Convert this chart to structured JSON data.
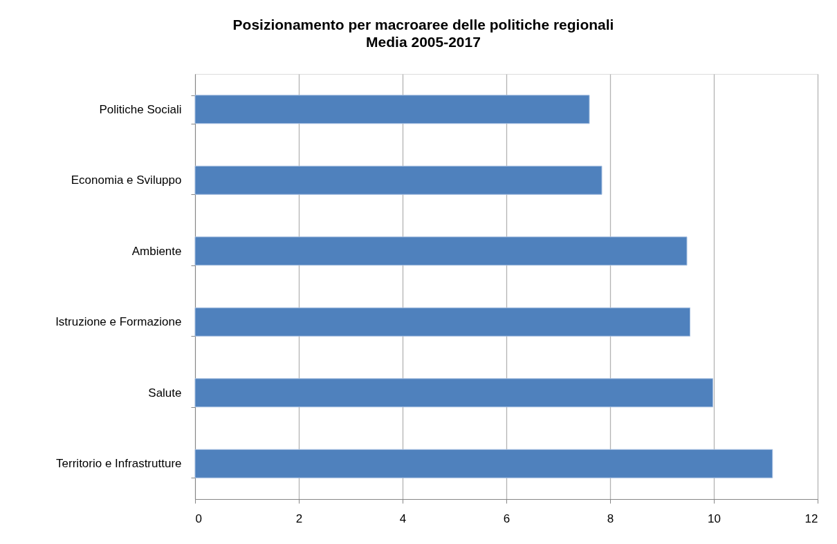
{
  "chart_data": {
    "type": "bar",
    "orientation": "horizontal",
    "title": "Posizionamento per macroaree delle politiche regionali",
    "subtitle": "Media 2005-2017",
    "categories": [
      "Politiche Sociali",
      "Economia e Sviluppo",
      "Ambiente",
      "Istruzione e Formazione",
      "Salute",
      "Territorio e Infrastrutture"
    ],
    "values": [
      7.6,
      7.84,
      9.48,
      9.54,
      9.98,
      11.13
    ],
    "color": "#4f81bd",
    "xlim": [
      0,
      12
    ],
    "xticks": [
      0,
      2,
      4,
      6,
      8,
      10,
      12
    ],
    "grid": "x"
  }
}
